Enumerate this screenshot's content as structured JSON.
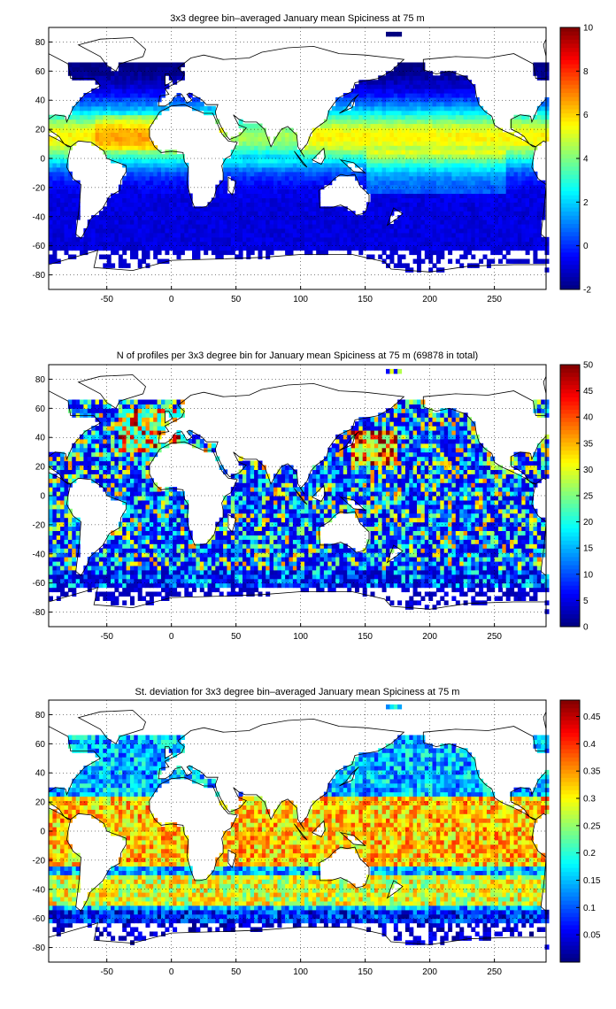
{
  "chart_data": [
    {
      "type": "heatmap",
      "title": "3x3 degree bin–averaged January mean Spiciness at 75 m",
      "xlabel": "",
      "ylabel": "",
      "xlim": [
        -95,
        290
      ],
      "ylim": [
        -90,
        90
      ],
      "grid": true,
      "x_ticks": [
        "-50",
        "0",
        "50",
        "100",
        "150",
        "200",
        "250"
      ],
      "y_ticks": [
        "80",
        "60",
        "40",
        "20",
        "0",
        "-20",
        "-40",
        "-60",
        "-80"
      ],
      "colorbar": {
        "range": [
          -2,
          10
        ],
        "ticks": [
          "10",
          "8",
          "6",
          "4",
          "2",
          "0",
          "-2"
        ],
        "colormap": "jet"
      },
      "pattern": "spice"
    },
    {
      "type": "heatmap",
      "title": "N of profiles per 3x3 degree bin for January mean Spiciness at 75 m (69878 in total)",
      "xlabel": "",
      "ylabel": "",
      "xlim": [
        -95,
        290
      ],
      "ylim": [
        -90,
        90
      ],
      "grid": true,
      "x_ticks": [
        "-50",
        "0",
        "50",
        "100",
        "150",
        "200",
        "250"
      ],
      "y_ticks": [
        "80",
        "60",
        "40",
        "20",
        "0",
        "-20",
        "-40",
        "-60",
        "-80"
      ],
      "colorbar": {
        "range": [
          0,
          50
        ],
        "ticks": [
          "50",
          "45",
          "40",
          "35",
          "30",
          "25",
          "20",
          "15",
          "10",
          "5",
          "0"
        ],
        "colormap": "jet"
      },
      "pattern": "count"
    },
    {
      "type": "heatmap",
      "title": "St. deviation for 3x3 degree bin–averaged January mean Spiciness at 75 m",
      "xlabel": "",
      "ylabel": "",
      "xlim": [
        -95,
        290
      ],
      "ylim": [
        -90,
        90
      ],
      "grid": true,
      "x_ticks": [
        "-50",
        "0",
        "50",
        "100",
        "150",
        "200",
        "250"
      ],
      "y_ticks": [
        "80",
        "60",
        "40",
        "20",
        "0",
        "-20",
        "-40",
        "-60",
        "-80"
      ],
      "colorbar": {
        "range": [
          0,
          0.48
        ],
        "ticks": [
          "0.45",
          "0.4",
          "0.35",
          "0.3",
          "0.25",
          "0.2",
          "0.15",
          "0.1",
          "0.05"
        ],
        "colormap": "jet"
      },
      "pattern": "std"
    }
  ]
}
